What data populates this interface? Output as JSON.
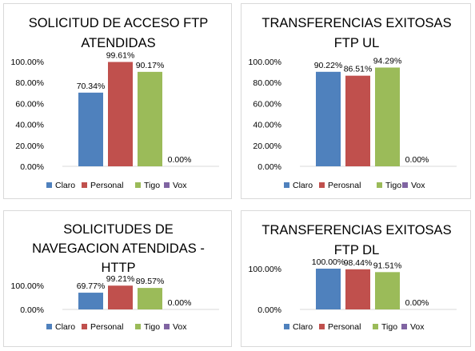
{
  "colors": {
    "Claro": "#4f81bd",
    "Personal": "#c0504d",
    "Tigo": "#9bbb59",
    "Vox": "#8064a2"
  },
  "chart_data": [
    {
      "type": "bar",
      "title_lines": [
        "SOLICITUD DE ACCESO FTP",
        "ATENDIDAS"
      ],
      "categories": [
        "Claro",
        "Personal",
        "Tigo",
        "Vox"
      ],
      "values": [
        70.34,
        99.61,
        90.17,
        0.0
      ],
      "data_labels": [
        "70.34%",
        "99.61%",
        "90.17%",
        "0.00%"
      ],
      "y_ticks": [
        "0.00%",
        "20.00%",
        "40.00%",
        "60.00%",
        "80.00%",
        "100.00%"
      ],
      "ylim": [
        0,
        100
      ],
      "grid": false,
      "legend_position": "bottom",
      "legend": [
        "Claro",
        "Personal",
        "Tigo",
        "Vox"
      ]
    },
    {
      "type": "bar",
      "title_lines": [
        "TRANSFERENCIAS EXITOSAS",
        "FTP UL"
      ],
      "categories": [
        "Claro",
        "Perosnal",
        "Tigo",
        "Vox"
      ],
      "values": [
        90.22,
        86.51,
        94.29,
        0.0
      ],
      "data_labels": [
        "90.22%",
        "86.51%",
        "94.29%",
        "0.00%"
      ],
      "y_ticks": [
        "0.00%",
        "20.00%",
        "40.00%",
        "60.00%",
        "80.00%",
        "100.00%"
      ],
      "ylim": [
        0,
        100
      ],
      "grid": false,
      "legend_position": "bottom",
      "legend": [
        "Claro",
        "Perosnal",
        "Tigo",
        "Vox"
      ]
    },
    {
      "type": "bar",
      "title_lines": [
        "SOLICITUDES DE",
        "NAVEGACION ATENDIDAS -",
        "HTTP"
      ],
      "categories": [
        "Claro",
        "Personal",
        "Tigo",
        "Vox"
      ],
      "values": [
        69.77,
        99.21,
        89.57,
        0.0
      ],
      "data_labels": [
        "69.77%",
        "99.21%",
        "89.57%",
        "0.00%"
      ],
      "y_ticks": [
        "0.00%",
        "100.00%"
      ],
      "ylim": [
        0,
        100
      ],
      "grid": false,
      "legend_position": "bottom",
      "legend": [
        "Claro",
        "Personal",
        "Tigo",
        "Vox"
      ]
    },
    {
      "type": "bar",
      "title_lines": [
        "TRANSFERENCIAS EXITOSAS",
        "FTP DL"
      ],
      "categories": [
        "Claro",
        "Personal",
        "Tigo",
        "Vox"
      ],
      "values": [
        100.0,
        98.44,
        91.51,
        0.0
      ],
      "data_labels": [
        "100.00%",
        "98.44%",
        "91.51%",
        "0.00%"
      ],
      "y_ticks": [
        "0.00%",
        "100.00%"
      ],
      "ylim": [
        0,
        100
      ],
      "grid": false,
      "legend_position": "bottom",
      "legend": [
        "Claro",
        "Personal",
        "Tigo",
        "Vox"
      ]
    }
  ]
}
